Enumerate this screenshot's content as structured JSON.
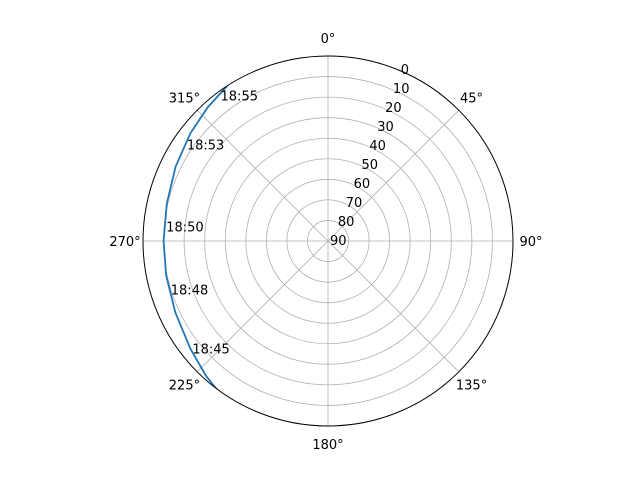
{
  "chart_data": {
    "type": "line",
    "projection": "polar",
    "theta_zero_location": "N",
    "theta_direction": "clockwise",
    "radial_axis": "elevation",
    "r_inverted": true,
    "rlim": [
      0,
      90
    ],
    "rticks": [
      "0",
      "10",
      "20",
      "30",
      "40",
      "50",
      "60",
      "70",
      "80",
      "90"
    ],
    "rtick_values": [
      0,
      10,
      20,
      30,
      40,
      50,
      60,
      70,
      80,
      90
    ],
    "theta_ticks": [
      {
        "deg": 0,
        "label": "0°"
      },
      {
        "deg": 45,
        "label": "45°"
      },
      {
        "deg": 90,
        "label": "90°"
      },
      {
        "deg": 135,
        "label": "135°"
      },
      {
        "deg": 180,
        "label": "180°"
      },
      {
        "deg": 225,
        "label": "225°"
      },
      {
        "deg": 270,
        "label": "270°"
      },
      {
        "deg": 315,
        "label": "315°"
      }
    ],
    "grid": true,
    "series": [
      {
        "color": "#1f77b4",
        "points": [
          {
            "az": 214,
            "el": -1.5
          },
          {
            "az": 222,
            "el": 1.5
          },
          {
            "az": 232,
            "el": 5
          },
          {
            "az": 245,
            "el": 8
          },
          {
            "az": 258,
            "el": 9.5
          },
          {
            "az": 270,
            "el": 10
          },
          {
            "az": 283,
            "el": 9.5
          },
          {
            "az": 296,
            "el": 7.5
          },
          {
            "az": 308,
            "el": 5
          },
          {
            "az": 318,
            "el": 2.5
          },
          {
            "az": 327,
            "el": 0
          }
        ]
      }
    ],
    "annotations": [
      {
        "text": "18:45",
        "az": 232,
        "el": 5
      },
      {
        "text": "18:48",
        "az": 253,
        "el": 9
      },
      {
        "text": "18:50",
        "az": 275,
        "el": 10
      },
      {
        "text": "18:53",
        "az": 304,
        "el": 6
      },
      {
        "text": "18:55",
        "az": 323,
        "el": 1.5
      }
    ]
  }
}
